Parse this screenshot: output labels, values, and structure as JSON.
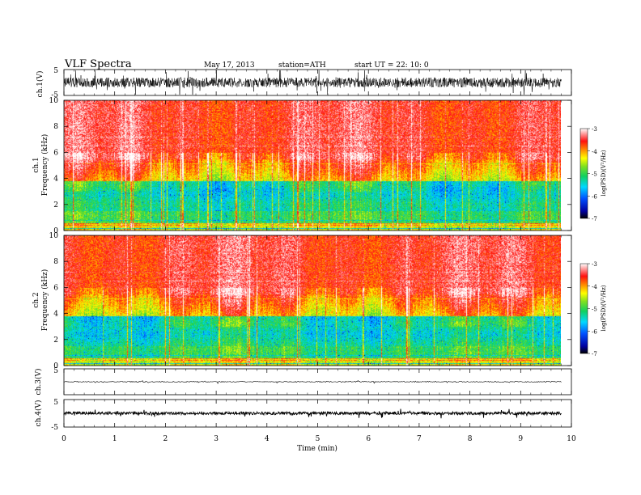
{
  "header": {
    "title": "VLF  Spectra",
    "date": "May 17, 2013",
    "station": "station=ATH",
    "start": "start  UT  =   22: 10: 0"
  },
  "chart_data": [
    {
      "type": "line",
      "panel": "ch1_waveform",
      "ylabel": "ch.1(V)",
      "ylim": [
        -5,
        5
      ],
      "yticks": [
        "5",
        "-5"
      ],
      "xlim": [
        0,
        10
      ]
    },
    {
      "type": "heatmap",
      "panel": "ch1_spectrogram",
      "ylabel_top": "ch.1",
      "ylabel": "Frequency  (kHz)",
      "ylim": [
        0,
        10
      ],
      "yticks": [
        "10",
        "8",
        "6",
        "4",
        "2",
        "0"
      ],
      "xlim": [
        0,
        9.8
      ],
      "colorbar": {
        "label": "log(PSD)(V²/Hz)",
        "range": [
          -7,
          -3
        ],
        "ticks": [
          "-3",
          "-4",
          "-5",
          "-6",
          "-7"
        ]
      }
    },
    {
      "type": "heatmap",
      "panel": "ch2_spectrogram",
      "ylabel_top": "ch.2",
      "ylabel": "Frequency  (kHz)",
      "ylim": [
        0,
        10
      ],
      "yticks": [
        "10",
        "8",
        "6",
        "4",
        "2",
        "0"
      ],
      "xlim": [
        0,
        9.8
      ],
      "colorbar": {
        "label": "log(PSD)(V²/Hz)",
        "range": [
          -7,
          -3
        ],
        "ticks": [
          "-3",
          "-4",
          "-5",
          "-6",
          "-7"
        ]
      }
    },
    {
      "type": "line",
      "panel": "ch3_waveform",
      "ylabel": "ch.3(V)",
      "ylim": [
        -5,
        5
      ],
      "yticks": [
        "5"
      ],
      "xlim": [
        0,
        10
      ]
    },
    {
      "type": "line",
      "panel": "ch4_waveform",
      "ylabel": "ch.4(V)",
      "ylim": [
        -5,
        5
      ],
      "yticks": [
        "5",
        "-5"
      ],
      "xlim": [
        0,
        10
      ],
      "xlabel": "Time  (min)",
      "xticks": [
        "0",
        "1",
        "2",
        "3",
        "4",
        "5",
        "6",
        "7",
        "8",
        "9",
        "10"
      ]
    }
  ]
}
